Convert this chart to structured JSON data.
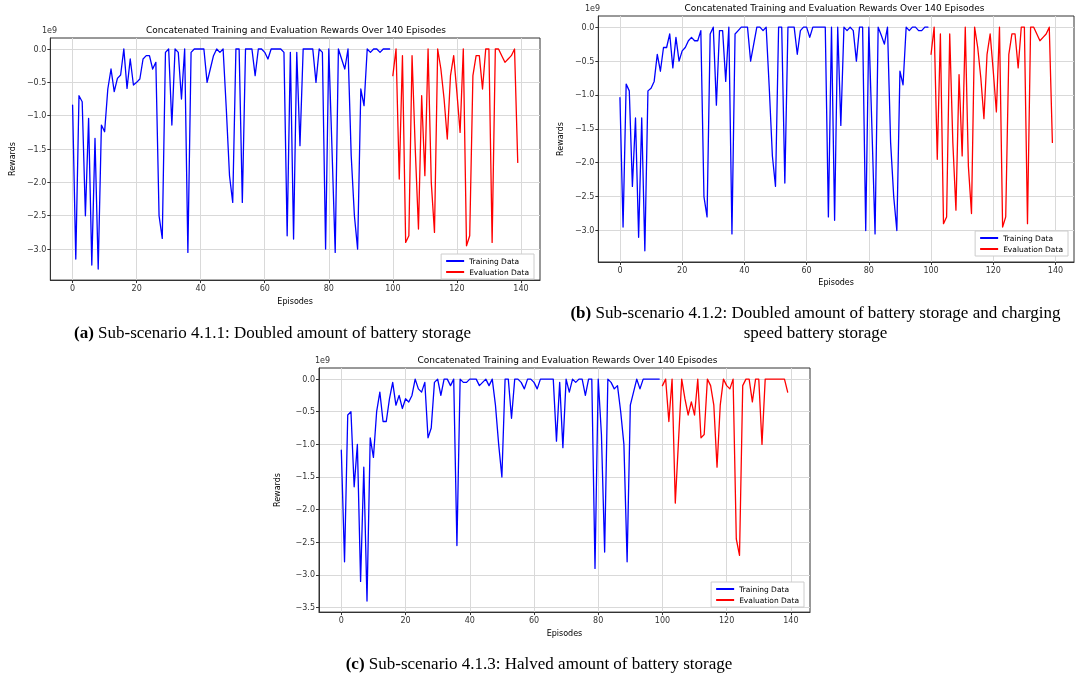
{
  "chart_data": [
    {
      "type": "line",
      "title": "Concatenated Training and Evaluation Rewards Over 140 Episodes",
      "xlabel": "Episodes",
      "ylabel": "Rewards",
      "annotations": [
        "1e9",
        "(a) Sub-scenario 4.1.1: Doubled amount of battery storage"
      ],
      "xlim": [
        -6.95,
        145.95
      ],
      "xticks": [
        0,
        20,
        40,
        60,
        80,
        100,
        120,
        140
      ],
      "ylim": [
        -3.465,
        0.165
      ],
      "yticks": [
        {
          "value": -3,
          "label": "−3.0"
        },
        {
          "value": -2.5,
          "label": "−2.5"
        },
        {
          "value": -2,
          "label": "−2.0"
        },
        {
          "value": -1.5,
          "label": "−1.5"
        },
        {
          "value": -1,
          "label": "−1.0"
        },
        {
          "value": -0.5,
          "label": "−0.5"
        },
        {
          "value": 0,
          "label": "0.0"
        }
      ],
      "grid": true,
      "legend": "bottom right",
      "marker": "none",
      "line_style": "solid",
      "series": [
        {
          "name": "Training Data",
          "color": "#0000ff",
          "x": [
            0,
            1,
            2,
            3,
            4,
            5,
            6,
            7,
            8,
            9,
            10,
            11,
            12,
            13,
            14,
            15,
            16,
            17,
            18,
            19,
            20,
            21,
            22,
            23,
            24,
            25,
            26,
            27,
            28,
            29,
            30,
            31,
            32,
            33,
            34,
            35,
            36,
            37,
            38,
            39,
            40,
            41,
            42,
            43,
            44,
            45,
            46,
            47,
            48,
            49,
            50,
            51,
            52,
            53,
            54,
            55,
            56,
            57,
            58,
            59,
            60,
            61,
            62,
            63,
            64,
            65,
            66,
            67,
            68,
            69,
            70,
            71,
            72,
            73,
            74,
            75,
            76,
            77,
            78,
            79,
            80,
            81,
            82,
            83,
            84,
            85,
            86,
            87,
            88,
            89,
            90,
            91,
            92,
            93,
            94,
            95,
            96,
            97,
            98,
            99
          ],
          "values": [
            -0.84,
            -3.15,
            -0.7,
            -0.79,
            -2.5,
            -1.04,
            -3.24,
            -1.34,
            -3.3,
            -1.14,
            -1.24,
            -0.6,
            -0.3,
            -0.64,
            -0.44,
            -0.39,
            0,
            -0.59,
            -0.15,
            -0.54,
            -0.5,
            -0.45,
            -0.15,
            -0.1,
            -0.1,
            -0.3,
            -0.2,
            -2.5,
            -2.84,
            -0.05,
            0,
            -1.14,
            0,
            -0.05,
            -0.75,
            0,
            -3.05,
            -0.05,
            0,
            0,
            0,
            0,
            -0.5,
            -0.3,
            -0.1,
            0,
            -0.05,
            0,
            -0.9,
            -1.9,
            -2.3,
            0,
            0,
            -2.3,
            0,
            0,
            0,
            -0.4,
            0,
            0,
            -0.05,
            -0.15,
            0,
            0,
            0,
            0,
            -0.05,
            -2.8,
            -0.05,
            -2.85,
            -0.05,
            -1.45,
            0,
            0,
            0,
            0,
            -0.5,
            0,
            -0.05,
            -3.0,
            0,
            -1.5,
            -3.05,
            0,
            -0.15,
            -0.3,
            0,
            -1.6,
            -2.5,
            -3.0,
            -0.6,
            -0.85,
            0,
            -0.05,
            0,
            0,
            -0.05,
            0,
            0,
            0
          ]
        },
        {
          "name": "Evaluation Data",
          "color": "#ff0000",
          "x": [
            100,
            101,
            102,
            103,
            104,
            105,
            106,
            107,
            108,
            109,
            110,
            111,
            112,
            113,
            114,
            115,
            116,
            117,
            118,
            119,
            120,
            121,
            122,
            123,
            124,
            125,
            126,
            127,
            128,
            129,
            130,
            131,
            132,
            133,
            134,
            135,
            136,
            137,
            138,
            139
          ],
          "values": [
            -0.4,
            0,
            -1.95,
            -0.1,
            -2.9,
            -2.8,
            -0.1,
            -1.5,
            -2.7,
            -0.7,
            -1.9,
            0,
            -2.0,
            -2.75,
            0,
            -0.3,
            -0.75,
            -1.35,
            -0.4,
            -0.1,
            -0.65,
            -1.25,
            0,
            -2.95,
            -2.8,
            -0.4,
            -0.1,
            -0.1,
            -0.6,
            0,
            0,
            -2.9,
            0,
            0,
            -0.1,
            -0.2,
            -0.15,
            -0.1,
            0,
            -1.7
          ]
        }
      ]
    },
    {
      "type": "line",
      "title": "Concatenated Training and Evaluation Rewards Over 140 Episodes",
      "xlabel": "Episodes",
      "ylabel": "Rewards",
      "annotations": [
        "1e9",
        "(b) Sub-scenario 4.1.2: Doubled amount of battery storage and charging speed battery storage"
      ],
      "xlim": [
        -6.95,
        145.95
      ],
      "xticks": [
        0,
        20,
        40,
        60,
        80,
        100,
        120,
        140
      ],
      "ylim": [
        -3.465,
        0.165
      ],
      "yticks": [
        {
          "value": -3,
          "label": "−3.0"
        },
        {
          "value": -2.5,
          "label": "−2.5"
        },
        {
          "value": -2,
          "label": "−2.0"
        },
        {
          "value": -1.5,
          "label": "−1.5"
        },
        {
          "value": -1,
          "label": "−1.0"
        },
        {
          "value": -0.5,
          "label": "−0.5"
        },
        {
          "value": 0,
          "label": "0.0"
        }
      ],
      "grid": true,
      "legend": "bottom right",
      "marker": "none",
      "line_style": "solid",
      "series": [
        {
          "name": "Training Data",
          "color": "#0000ff",
          "x": [
            0,
            1,
            2,
            3,
            4,
            5,
            6,
            7,
            8,
            9,
            10,
            11,
            12,
            13,
            14,
            15,
            16,
            17,
            18,
            19,
            20,
            21,
            22,
            23,
            24,
            25,
            26,
            27,
            28,
            29,
            30,
            31,
            32,
            33,
            34,
            35,
            36,
            37,
            38,
            39,
            40,
            41,
            42,
            43,
            44,
            45,
            46,
            47,
            48,
            49,
            50,
            51,
            52,
            53,
            54,
            55,
            56,
            57,
            58,
            59,
            60,
            61,
            62,
            63,
            64,
            65,
            66,
            67,
            68,
            69,
            70,
            71,
            72,
            73,
            74,
            75,
            76,
            77,
            78,
            79,
            80,
            81,
            82,
            83,
            84,
            85,
            86,
            87,
            88,
            89,
            90,
            91,
            92,
            93,
            94,
            95,
            96,
            97,
            98,
            99
          ],
          "values": [
            -1.04,
            -2.95,
            -0.84,
            -0.94,
            -2.35,
            -1.34,
            -3.1,
            -1.34,
            -3.3,
            -0.94,
            -0.9,
            -0.8,
            -0.4,
            -0.65,
            -0.3,
            -0.3,
            -0.1,
            -0.6,
            -0.15,
            -0.5,
            -0.35,
            -0.3,
            -0.2,
            -0.15,
            -0.2,
            -0.2,
            -0.05,
            -2.5,
            -2.8,
            -0.1,
            0,
            -1.15,
            -0.05,
            -0.05,
            -0.8,
            0,
            -3.05,
            -0.1,
            -0.05,
            0,
            0,
            0,
            -0.5,
            -0.25,
            0,
            0,
            -0.05,
            0,
            -0.9,
            -1.9,
            -2.35,
            0,
            0,
            -2.3,
            0,
            0,
            0,
            -0.4,
            -0.05,
            0,
            0,
            -0.15,
            0,
            0,
            0,
            0,
            0,
            -2.8,
            0,
            -2.85,
            0,
            -1.45,
            0,
            -0.05,
            0,
            -0.05,
            -0.5,
            0,
            0,
            -3.0,
            0,
            -1.5,
            -3.05,
            0,
            -0.12,
            -0.25,
            0,
            -1.7,
            -2.5,
            -3.0,
            -0.65,
            -0.85,
            0,
            -0.05,
            0,
            0,
            -0.05,
            -0.05,
            0,
            0
          ]
        },
        {
          "name": "Evaluation Data",
          "color": "#ff0000",
          "x": [
            100,
            101,
            102,
            103,
            104,
            105,
            106,
            107,
            108,
            109,
            110,
            111,
            112,
            113,
            114,
            115,
            116,
            117,
            118,
            119,
            120,
            121,
            122,
            123,
            124,
            125,
            126,
            127,
            128,
            129,
            130,
            131,
            132,
            133,
            134,
            135,
            136,
            137,
            138,
            139
          ],
          "values": [
            -0.4,
            0,
            -1.95,
            -0.1,
            -2.9,
            -2.8,
            -0.1,
            -1.7,
            -2.7,
            -0.7,
            -1.9,
            0,
            -2.05,
            -2.75,
            0,
            -0.3,
            -0.75,
            -1.35,
            -0.4,
            -0.1,
            -0.65,
            -1.25,
            0,
            -2.95,
            -2.8,
            -0.4,
            -0.1,
            -0.1,
            -0.6,
            0,
            0,
            -2.9,
            0,
            0,
            -0.1,
            -0.2,
            -0.15,
            -0.1,
            0,
            -1.7
          ]
        }
      ]
    },
    {
      "type": "line",
      "title": "Concatenated Training and Evaluation Rewards Over 140 Episodes",
      "xlabel": "Episodes",
      "ylabel": "Rewards",
      "annotations": [
        "1e9",
        "(c) Sub-scenario 4.1.3: Halved amount of battery storage"
      ],
      "xlim": [
        -6.95,
        145.95
      ],
      "xticks": [
        0,
        20,
        40,
        60,
        80,
        100,
        120,
        140
      ],
      "ylim": [
        -3.57,
        0.17
      ],
      "yticks": [
        {
          "value": -3.5,
          "label": "−3.5"
        },
        {
          "value": -3,
          "label": "−3.0"
        },
        {
          "value": -2.5,
          "label": "−2.5"
        },
        {
          "value": -2,
          "label": "−2.0"
        },
        {
          "value": -1.5,
          "label": "−1.5"
        },
        {
          "value": -1,
          "label": "−1.0"
        },
        {
          "value": -0.5,
          "label": "−0.5"
        },
        {
          "value": 0,
          "label": "0.0"
        }
      ],
      "grid": true,
      "legend": "bottom right",
      "marker": "none",
      "line_style": "solid",
      "series": [
        {
          "name": "Training Data",
          "color": "#0000ff",
          "x": [
            0,
            1,
            2,
            3,
            4,
            5,
            6,
            7,
            8,
            9,
            10,
            11,
            12,
            13,
            14,
            15,
            16,
            17,
            18,
            19,
            20,
            21,
            22,
            23,
            24,
            25,
            26,
            27,
            28,
            29,
            30,
            31,
            32,
            33,
            34,
            35,
            36,
            37,
            38,
            39,
            40,
            41,
            42,
            43,
            44,
            45,
            46,
            47,
            48,
            49,
            50,
            51,
            52,
            53,
            54,
            55,
            56,
            57,
            58,
            59,
            60,
            61,
            62,
            63,
            64,
            65,
            66,
            67,
            68,
            69,
            70,
            71,
            72,
            73,
            74,
            75,
            76,
            77,
            78,
            79,
            80,
            81,
            82,
            83,
            84,
            85,
            86,
            87,
            88,
            89,
            90,
            91,
            92,
            93,
            94,
            95,
            96,
            97,
            98,
            99
          ],
          "values": [
            -1.09,
            -2.8,
            -0.55,
            -0.5,
            -1.65,
            -1.0,
            -3.1,
            -1.35,
            -3.4,
            -0.9,
            -1.2,
            -0.5,
            -0.2,
            -0.65,
            -0.65,
            -0.3,
            -0.05,
            -0.4,
            -0.25,
            -0.45,
            -0.3,
            -0.35,
            -0.25,
            0,
            -0.15,
            -0.2,
            -0.05,
            -0.9,
            -0.75,
            -0.05,
            0,
            -0.25,
            0,
            0,
            -0.1,
            0,
            -2.55,
            0,
            -0.05,
            -0.05,
            0,
            0,
            0,
            -0.1,
            -0.05,
            0,
            -0.1,
            0,
            -0.4,
            -1.0,
            -1.5,
            0,
            0,
            -0.6,
            0,
            0,
            -0.05,
            -0.15,
            0,
            0,
            -0.05,
            -0.15,
            0,
            0,
            0,
            0,
            0,
            -0.95,
            -0.05,
            -1.05,
            0,
            -0.2,
            0,
            -0.05,
            0,
            0,
            -0.25,
            0,
            0,
            -2.9,
            0,
            -0.85,
            -2.65,
            0,
            -0.05,
            -0.15,
            -0.1,
            -0.5,
            -1.0,
            -2.8,
            -0.4,
            -0.2,
            0,
            -0.15,
            0,
            0,
            0,
            0,
            0,
            0
          ]
        },
        {
          "name": "Evaluation Data",
          "color": "#ff0000",
          "x": [
            100,
            101,
            102,
            103,
            104,
            105,
            106,
            107,
            108,
            109,
            110,
            111,
            112,
            113,
            114,
            115,
            116,
            117,
            118,
            119,
            120,
            121,
            122,
            123,
            124,
            125,
            126,
            127,
            128,
            129,
            130,
            131,
            132,
            133,
            134,
            135,
            136,
            137,
            138,
            139
          ],
          "values": [
            -0.1,
            0,
            -0.65,
            0,
            -1.9,
            -0.95,
            0,
            -0.3,
            -0.55,
            -0.35,
            -0.55,
            0,
            -0.9,
            -0.85,
            0,
            -0.1,
            -0.4,
            -1.35,
            -0.4,
            0,
            -0.1,
            -0.15,
            0,
            -2.45,
            -2.7,
            -0.1,
            0,
            0,
            -0.35,
            0,
            0,
            -1.0,
            0,
            0,
            0,
            0,
            0,
            0,
            0,
            -0.2
          ]
        }
      ]
    }
  ]
}
